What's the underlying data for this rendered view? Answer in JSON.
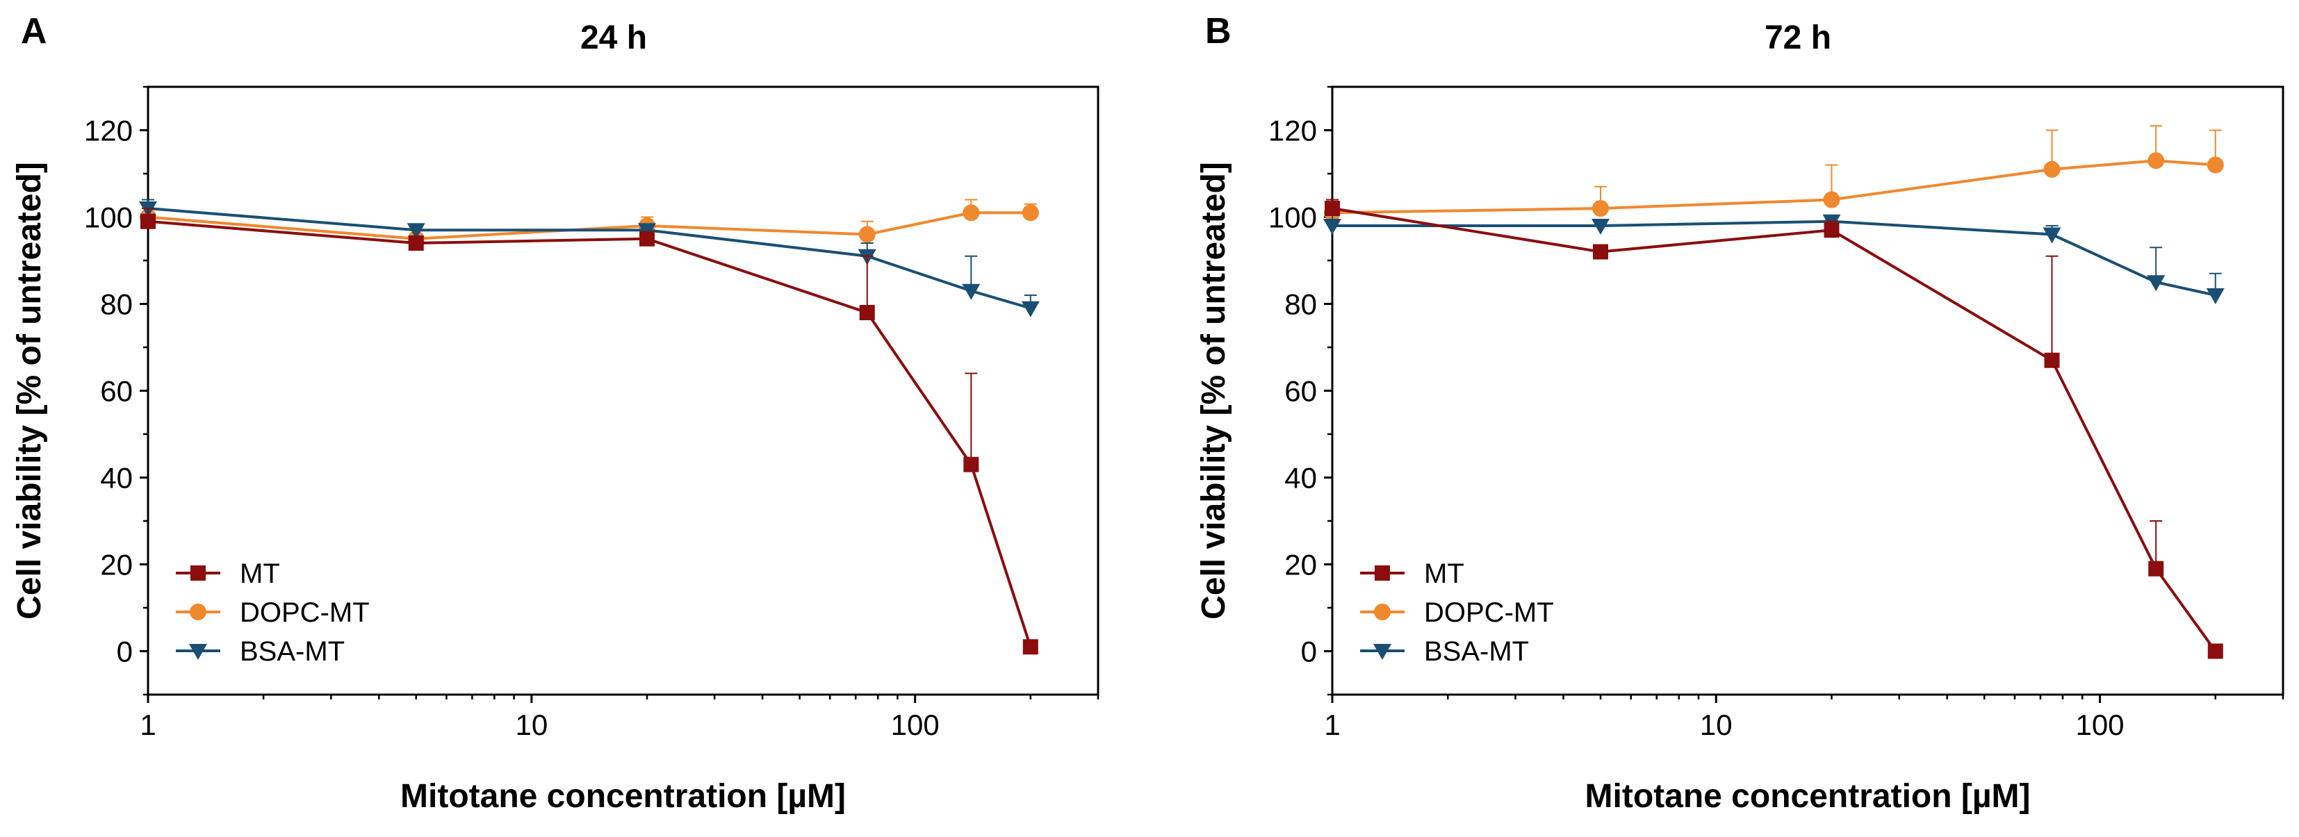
{
  "chart_data": [
    {
      "type": "line",
      "panel_label": "A",
      "title": "24 h",
      "xlabel": "Mitotane concentration [µM]",
      "ylabel": "Cell viability [% of untreated]",
      "xscale": "log",
      "xlim": [
        1,
        300
      ],
      "ylim": [
        -10,
        130
      ],
      "xticks": [
        1,
        10,
        100
      ],
      "xtick_labels": [
        "1",
        "10",
        "100"
      ],
      "yticks": [
        0,
        20,
        40,
        60,
        80,
        100,
        120
      ],
      "ytick_labels": [
        "0",
        "20",
        "40",
        "60",
        "80",
        "100",
        "120"
      ],
      "legend_position": "bottom-left",
      "series": [
        {
          "name": "MT",
          "color": "#8b0d0d",
          "marker": "square",
          "x": [
            1,
            5,
            20,
            75,
            140,
            200
          ],
          "y": [
            99,
            94,
            95,
            78,
            43,
            1
          ],
          "err_upper": [
            3,
            1,
            1,
            13,
            21,
            0
          ]
        },
        {
          "name": "DOPC-MT",
          "color": "#f0882e",
          "marker": "circle",
          "x": [
            1,
            5,
            20,
            75,
            140,
            200
          ],
          "y": [
            100,
            95,
            98,
            96,
            101,
            101
          ],
          "err_upper": [
            2,
            3,
            2,
            3,
            3,
            2
          ]
        },
        {
          "name": "BSA-MT",
          "color": "#1a4f73",
          "marker": "triangle-down",
          "x": [
            1,
            5,
            20,
            75,
            140,
            200
          ],
          "y": [
            102,
            97,
            97,
            91,
            83,
            79
          ],
          "err_upper": [
            2,
            1,
            1,
            3,
            8,
            3
          ]
        }
      ]
    },
    {
      "type": "line",
      "panel_label": "B",
      "title": "72 h",
      "xlabel": "Mitotane concentration [µM]",
      "ylabel": "Cell viability [% of untreated]",
      "xscale": "log",
      "xlim": [
        1,
        300
      ],
      "ylim": [
        -10,
        130
      ],
      "xticks": [
        1,
        10,
        100
      ],
      "xtick_labels": [
        "1",
        "10",
        "100"
      ],
      "yticks": [
        0,
        20,
        40,
        60,
        80,
        100,
        120
      ],
      "ytick_labels": [
        "0",
        "20",
        "40",
        "60",
        "80",
        "100",
        "120"
      ],
      "legend_position": "bottom-left",
      "series": [
        {
          "name": "MT",
          "color": "#8b0d0d",
          "marker": "square",
          "x": [
            1,
            5,
            20,
            75,
            140,
            200
          ],
          "y": [
            102,
            92,
            97,
            67,
            19,
            0
          ],
          "err_upper": [
            2,
            1,
            2,
            24,
            11,
            0
          ]
        },
        {
          "name": "DOPC-MT",
          "color": "#f0882e",
          "marker": "circle",
          "x": [
            1,
            5,
            20,
            75,
            140,
            200
          ],
          "y": [
            101,
            102,
            104,
            111,
            113,
            112
          ],
          "err_upper": [
            2,
            5,
            8,
            9,
            8,
            8
          ]
        },
        {
          "name": "BSA-MT",
          "color": "#1a4f73",
          "marker": "triangle-down",
          "x": [
            1,
            5,
            20,
            75,
            140,
            200
          ],
          "y": [
            98,
            98,
            99,
            96,
            85,
            82
          ],
          "err_upper": [
            4,
            1,
            1,
            2,
            8,
            5
          ]
        }
      ]
    }
  ]
}
